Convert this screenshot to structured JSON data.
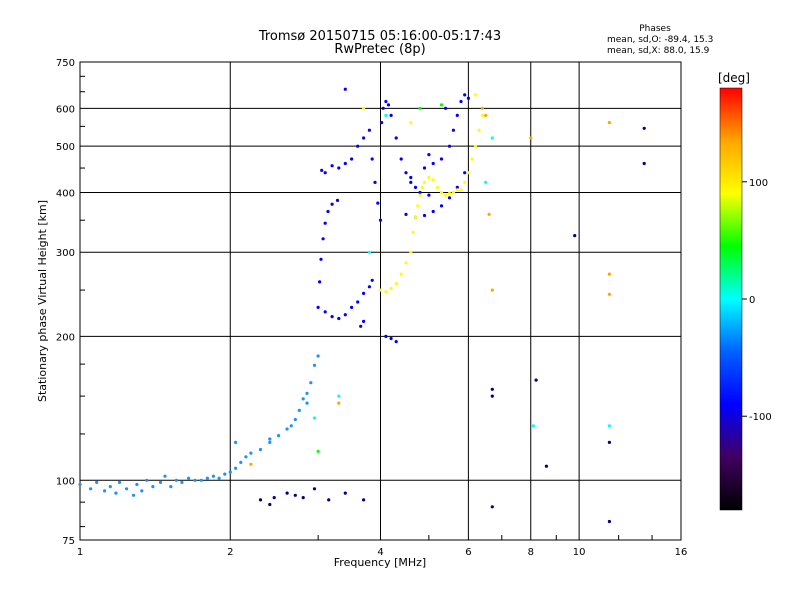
{
  "chart_data": {
    "type": "scatter",
    "title": "Tromsø 20150715 05:16:00-05:17:43",
    "subtitle": "RwPretec (8p)",
    "xlabel": "Frequency [MHz]",
    "ylabel": "Stationary phase Virtual Height [km]",
    "x_scale": "log",
    "y_scale": "log",
    "xlim": [
      1,
      16
    ],
    "ylim": [
      75,
      750
    ],
    "x_ticks": [
      "1",
      "2",
      "4",
      "6",
      "8",
      "10",
      "16"
    ],
    "y_ticks": [
      "75",
      "100",
      "200",
      "300",
      "400",
      "500",
      "600",
      "750"
    ],
    "grid": true,
    "phases_box": {
      "heading": "Phases",
      "line1": "mean, sd,O: -89.4, 15.3",
      "line2": "mean, sd,X:  88.0, 15.9"
    },
    "colorbar": {
      "label": "[deg]",
      "range": [
        -180,
        180
      ],
      "ticks": [
        "100",
        "0",
        "-100"
      ],
      "colors": [
        "#ff0000",
        "#ffa500",
        "#ffff00",
        "#00ff00",
        "#00ffff",
        "#0060ff",
        "#0000ff",
        "#400060",
        "#000000"
      ]
    },
    "series": [
      {
        "color": "#1e90ff",
        "points": [
          [
            1.0,
            98
          ],
          [
            1.05,
            96
          ],
          [
            1.08,
            99
          ],
          [
            1.12,
            95
          ],
          [
            1.15,
            97
          ],
          [
            1.18,
            94
          ],
          [
            1.2,
            99
          ],
          [
            1.24,
            96
          ],
          [
            1.28,
            93
          ],
          [
            1.3,
            98
          ],
          [
            1.33,
            95
          ],
          [
            1.36,
            100
          ],
          [
            1.4,
            97
          ],
          [
            1.45,
            99
          ],
          [
            1.48,
            102
          ],
          [
            1.52,
            97
          ],
          [
            1.56,
            100
          ],
          [
            1.6,
            99
          ],
          [
            1.65,
            101
          ],
          [
            1.7,
            100
          ],
          [
            1.75,
            100
          ],
          [
            1.8,
            101
          ],
          [
            1.85,
            102
          ],
          [
            1.9,
            101
          ],
          [
            1.95,
            103
          ],
          [
            2.0,
            104
          ],
          [
            2.05,
            106
          ],
          [
            2.1,
            109
          ],
          [
            2.15,
            112
          ],
          [
            2.2,
            114
          ],
          [
            2.3,
            116
          ],
          [
            2.4,
            120
          ],
          [
            2.5,
            124
          ],
          [
            2.6,
            128
          ],
          [
            2.7,
            134
          ],
          [
            2.75,
            140
          ],
          [
            2.8,
            148
          ],
          [
            2.85,
            152
          ],
          [
            2.9,
            160
          ],
          [
            2.95,
            174
          ],
          [
            3.0,
            182
          ],
          [
            2.05,
            120
          ],
          [
            2.4,
            122
          ],
          [
            2.65,
            130
          ],
          [
            2.85,
            145
          ]
        ]
      },
      {
        "color": "#0000ff",
        "points": [
          [
            3.0,
            230
          ],
          [
            3.02,
            260
          ],
          [
            3.04,
            290
          ],
          [
            3.07,
            320
          ],
          [
            3.1,
            345
          ],
          [
            3.14,
            365
          ],
          [
            3.2,
            378
          ],
          [
            3.28,
            385
          ],
          [
            3.1,
            225
          ],
          [
            3.2,
            220
          ],
          [
            3.3,
            218
          ],
          [
            3.4,
            222
          ],
          [
            3.5,
            230
          ],
          [
            3.6,
            236
          ],
          [
            3.7,
            246
          ],
          [
            3.8,
            254
          ],
          [
            3.85,
            262
          ],
          [
            3.05,
            445
          ],
          [
            3.1,
            440
          ],
          [
            3.2,
            455
          ],
          [
            3.3,
            450
          ],
          [
            3.4,
            460
          ],
          [
            3.5,
            470
          ],
          [
            3.6,
            500
          ],
          [
            3.7,
            520
          ],
          [
            3.8,
            540
          ],
          [
            3.85,
            470
          ],
          [
            3.9,
            420
          ],
          [
            3.95,
            380
          ],
          [
            4.0,
            350
          ],
          [
            4.02,
            560
          ],
          [
            4.05,
            600
          ],
          [
            4.1,
            620
          ],
          [
            4.15,
            610
          ],
          [
            4.2,
            580
          ],
          [
            4.3,
            520
          ],
          [
            4.4,
            470
          ],
          [
            4.5,
            440
          ],
          [
            4.6,
            420
          ],
          [
            4.7,
            410
          ],
          [
            4.8,
            400
          ],
          [
            5.0,
            395
          ],
          [
            4.9,
            450
          ],
          [
            5.1,
            460
          ],
          [
            5.3,
            470
          ],
          [
            5.5,
            500
          ],
          [
            5.6,
            540
          ],
          [
            5.7,
            580
          ],
          [
            5.8,
            620
          ],
          [
            5.9,
            640
          ],
          [
            6.0,
            630
          ],
          [
            5.4,
            600
          ],
          [
            5.0,
            480
          ],
          [
            4.6,
            430
          ],
          [
            4.5,
            360
          ],
          [
            4.7,
            355
          ],
          [
            4.9,
            358
          ],
          [
            5.1,
            365
          ],
          [
            5.3,
            375
          ],
          [
            5.5,
            390
          ],
          [
            5.7,
            410
          ],
          [
            5.9,
            440
          ],
          [
            4.1,
            200
          ],
          [
            4.2,
            198
          ],
          [
            4.3,
            195
          ],
          [
            3.4,
            658
          ],
          [
            3.65,
            210
          ],
          [
            3.7,
            215
          ]
        ]
      },
      {
        "color": "#ffff00",
        "points": [
          [
            4.0,
            250
          ],
          [
            4.1,
            248
          ],
          [
            4.2,
            252
          ],
          [
            4.3,
            258
          ],
          [
            4.4,
            270
          ],
          [
            4.5,
            285
          ],
          [
            4.6,
            300
          ],
          [
            4.65,
            330
          ],
          [
            4.7,
            355
          ],
          [
            4.75,
            375
          ],
          [
            4.8,
            395
          ],
          [
            4.85,
            410
          ],
          [
            4.9,
            420
          ],
          [
            5.0,
            430
          ],
          [
            5.1,
            425
          ],
          [
            5.2,
            410
          ],
          [
            5.3,
            400
          ],
          [
            5.4,
            395
          ],
          [
            5.5,
            398
          ],
          [
            5.6,
            400
          ],
          [
            5.7,
            405
          ],
          [
            5.8,
            405
          ],
          [
            5.9,
            420
          ],
          [
            6.0,
            440
          ],
          [
            6.1,
            470
          ],
          [
            6.2,
            500
          ],
          [
            6.3,
            540
          ],
          [
            6.4,
            580
          ],
          [
            6.2,
            640
          ],
          [
            4.6,
            560
          ],
          [
            3.7,
            600
          ]
        ]
      },
      {
        "color": "#ffa500",
        "points": [
          [
            6.4,
            600
          ],
          [
            6.6,
            360
          ],
          [
            6.7,
            250
          ],
          [
            6.5,
            580
          ],
          [
            8.0,
            520
          ],
          [
            11.5,
            560
          ],
          [
            11.5,
            270
          ],
          [
            11.5,
            245
          ],
          [
            3.3,
            145
          ],
          [
            2.2,
            108
          ]
        ]
      },
      {
        "color": "#00ffff",
        "points": [
          [
            3.8,
            300
          ],
          [
            4.1,
            580
          ],
          [
            6.5,
            420
          ],
          [
            11.5,
            130
          ],
          [
            6.7,
            520
          ],
          [
            2.95,
            135
          ],
          [
            8.1,
            130
          ],
          [
            3.3,
            150
          ]
        ]
      },
      {
        "color": "#000080",
        "points": [
          [
            6.7,
            150
          ],
          [
            6.7,
            155
          ],
          [
            8.2,
            162
          ],
          [
            8.6,
            107
          ],
          [
            11.5,
            120
          ],
          [
            11.5,
            82
          ],
          [
            13.5,
            545
          ],
          [
            13.5,
            460
          ],
          [
            9.8,
            325
          ],
          [
            6.7,
            88
          ],
          [
            2.3,
            91
          ],
          [
            2.45,
            92
          ],
          [
            2.6,
            94
          ],
          [
            2.8,
            92
          ],
          [
            2.95,
            96
          ],
          [
            3.15,
            91
          ],
          [
            3.4,
            94
          ],
          [
            3.7,
            91
          ],
          [
            2.4,
            89
          ],
          [
            2.7,
            93
          ]
        ]
      },
      {
        "color": "#00ff00",
        "points": [
          [
            3.0,
            115
          ],
          [
            4.8,
            600
          ],
          [
            5.3,
            610
          ]
        ]
      }
    ]
  }
}
